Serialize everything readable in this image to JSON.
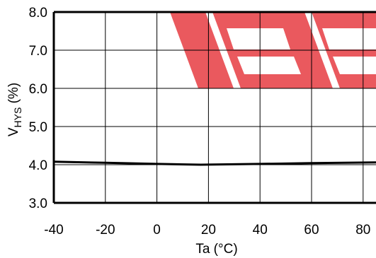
{
  "chart_data": {
    "type": "line",
    "xlabel": "Ta (°C)",
    "ylabel": {
      "base": "V",
      "subscript": "HYS",
      "unit": " (%)"
    },
    "xlim": [
      -40,
      85
    ],
    "ylim": [
      3.0,
      8.0
    ],
    "x_ticks": [
      "-40",
      "-20",
      "0",
      "20",
      "40",
      "60",
      "80"
    ],
    "y_ticks": [
      "3.0",
      "4.0",
      "5.0",
      "6.0",
      "7.0",
      "8.0"
    ],
    "grid": true,
    "series": [
      {
        "x": [
          -40,
          -20,
          0,
          17,
          40,
          60,
          85
        ],
        "y": [
          4.08,
          4.05,
          4.02,
          4.0,
          4.02,
          4.04,
          4.06
        ],
        "color": "#000000"
      }
    ],
    "watermark": {
      "color": "#e8474c"
    }
  }
}
